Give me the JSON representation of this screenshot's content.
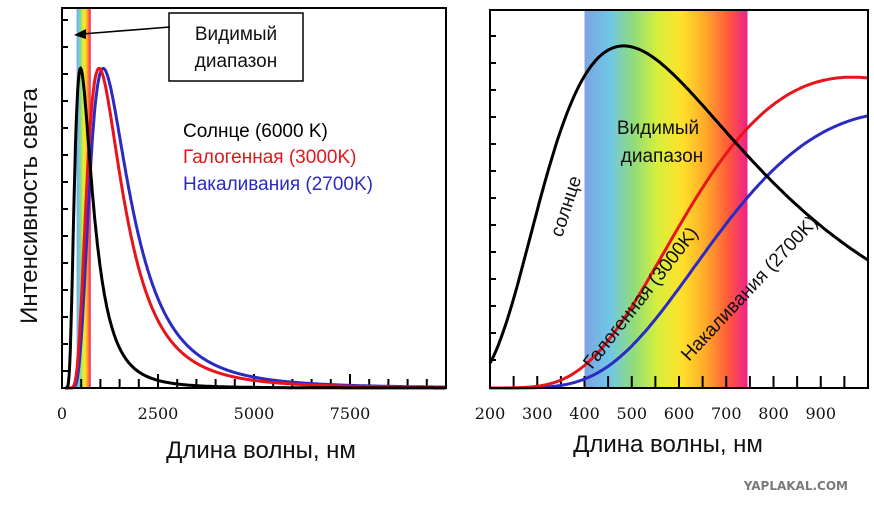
{
  "chart_data": [
    {
      "type": "line",
      "ylabel": "Интенсивность света",
      "xlabel": "Длина волны, нм",
      "xlim": [
        0,
        10000
      ],
      "ylim": [
        0,
        1
      ],
      "x_ticks": [
        0,
        2500,
        5000,
        7500
      ],
      "visible_band": [
        380,
        750
      ],
      "annotation": {
        "line1": "Видимый",
        "line2": "диапазон"
      },
      "series": [
        {
          "name": "Солнце (6000 K)",
          "color": "#000000",
          "temp": 6000,
          "peak": 0.94
        },
        {
          "name": "Галогенная (3000K)",
          "color": "#e8141b",
          "temp": 3000,
          "peak": 0.94
        },
        {
          "name": "Накаливания (2700K)",
          "color": "#2b2bc4",
          "temp": 2700,
          "peak": 0.94
        }
      ]
    },
    {
      "type": "line",
      "xlabel": "Длина волны, нм",
      "xlim": [
        200,
        1000
      ],
      "ylim": [
        0,
        1
      ],
      "x_ticks": [
        200,
        300,
        400,
        500,
        600,
        700,
        800,
        900
      ],
      "visible_band": [
        400,
        745
      ],
      "annotation": {
        "line1": "Видимый",
        "line2": "диапазон"
      },
      "series_labels": {
        "sun": "солнце",
        "halogen": "Галогенная (3000K)",
        "incandescent": "Накаливания (2700K)"
      },
      "series": [
        {
          "name": "солнце",
          "color": "#000000",
          "temp": 6000
        },
        {
          "name": "Галогенная (3000K)",
          "color": "#e8141b",
          "temp": 3000
        },
        {
          "name": "Накаливания (2700K)",
          "color": "#2b2bc4",
          "temp": 2700
        }
      ]
    }
  ],
  "watermark": "YAPLAKAL.COM"
}
